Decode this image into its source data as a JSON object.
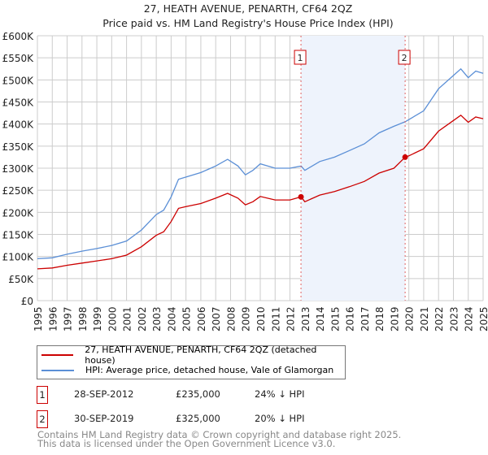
{
  "chart_data": {
    "type": "line",
    "title": "27, HEATH AVENUE, PENARTH, CF64 2QZ",
    "subtitle": "Price paid vs. HM Land Registry's House Price Index (HPI)",
    "xlim": [
      1995,
      2025
    ],
    "ylim": [
      0,
      600000
    ],
    "x_ticks": [
      "1995",
      "1996",
      "1997",
      "1998",
      "1999",
      "2000",
      "2001",
      "2002",
      "2003",
      "2004",
      "2005",
      "2006",
      "2007",
      "2008",
      "2009",
      "2010",
      "2011",
      "2012",
      "2013",
      "2014",
      "2015",
      "2016",
      "2017",
      "2018",
      "2019",
      "2020",
      "2021",
      "2022",
      "2023",
      "2024",
      "2025"
    ],
    "y_ticks": [
      {
        "v": 0,
        "label": "£0"
      },
      {
        "v": 50000,
        "label": "£50K"
      },
      {
        "v": 100000,
        "label": "£100K"
      },
      {
        "v": 150000,
        "label": "£150K"
      },
      {
        "v": 200000,
        "label": "£200K"
      },
      {
        "v": 250000,
        "label": "£250K"
      },
      {
        "v": 300000,
        "label": "£300K"
      },
      {
        "v": 350000,
        "label": "£350K"
      },
      {
        "v": 400000,
        "label": "£400K"
      },
      {
        "v": 450000,
        "label": "£450K"
      },
      {
        "v": 500000,
        "label": "£500K"
      },
      {
        "v": 550000,
        "label": "£550K"
      },
      {
        "v": 600000,
        "label": "£600K"
      }
    ],
    "grid": true,
    "x": [
      1995,
      1996,
      1997,
      1998,
      1999,
      2000,
      2001,
      2002,
      2003,
      2003.5,
      2004,
      2004.5,
      2005,
      2006,
      2007,
      2007.8,
      2008.5,
      2009,
      2009.5,
      2010,
      2011,
      2012,
      2012.75,
      2013,
      2014,
      2015,
      2016,
      2017,
      2018,
      2019,
      2019.75,
      2020,
      2021,
      2022,
      2023,
      2023.5,
      2024,
      2024.5,
      2025
    ],
    "series": [
      {
        "name": "27, HEATH AVENUE, PENARTH, CF64 2QZ (detached house)",
        "color": "#cc0000",
        "values": [
          72000,
          74000,
          80000,
          85000,
          90000,
          95000,
          103000,
          122000,
          148000,
          156000,
          179000,
          209000,
          213000,
          220000,
          232000,
          243000,
          232000,
          217000,
          224000,
          236000,
          228000,
          228000,
          235000,
          224000,
          239000,
          247000,
          258000,
          270000,
          289000,
          300000,
          325000,
          328000,
          344000,
          384000,
          408000,
          420000,
          404000,
          416000,
          412000
        ]
      },
      {
        "name": "HPI: Average price, detached house, Vale of Glamorgan",
        "color": "#5b8fd6",
        "values": [
          95000,
          97000,
          105000,
          112000,
          118000,
          125000,
          135000,
          160000,
          195000,
          205000,
          235000,
          275000,
          280000,
          290000,
          305000,
          320000,
          305000,
          285000,
          295000,
          310000,
          300000,
          300000,
          305000,
          295000,
          315000,
          325000,
          340000,
          355000,
          380000,
          395000,
          405000,
          410000,
          430000,
          480000,
          510000,
          525000,
          505000,
          520000,
          515000
        ]
      }
    ],
    "sales": [
      {
        "label": "1",
        "x": 2012.74,
        "price": 235000,
        "date": "28-SEP-2012",
        "price_text": "£235,000",
        "hpi_text": "24% ↓ HPI"
      },
      {
        "label": "2",
        "x": 2019.75,
        "price": 325000,
        "date": "30-SEP-2019",
        "price_text": "£325,000",
        "hpi_text": "20% ↓ HPI"
      }
    ]
  },
  "footer": {
    "line1": "Contains HM Land Registry data © Crown copyright and database right 2025.",
    "line2": "This data is licensed under the Open Government Licence v3.0."
  }
}
